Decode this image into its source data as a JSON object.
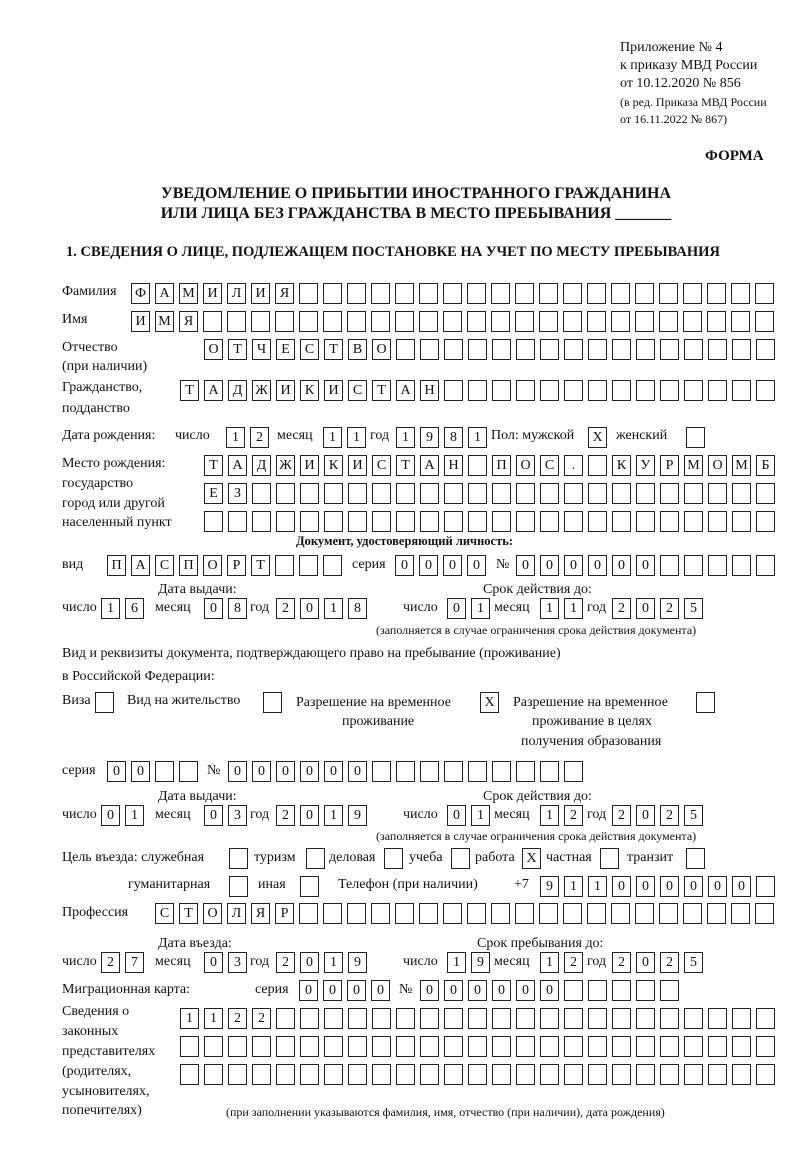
{
  "header": {
    "appendix": [
      "Приложение № 4",
      "к приказу МВД России",
      "от 10.12.2020 № 856"
    ],
    "revision": [
      "(в ред. Приказа МВД России",
      "от 16.11.2022 № 867)"
    ],
    "form_label": "ФОРМА",
    "title_line1": "УВЕДОМЛЕНИЕ О ПРИБЫТИИ ИНОСТРАННОГО ГРАЖДАНИНА",
    "title_line2": "ИЛИ ЛИЦА БЕЗ ГРАЖДАНСТВА В МЕСТО ПРЕБЫВАНИЯ _______",
    "section1": "1. СВЕДЕНИЯ О ЛИЦЕ, ПОДЛЕЖАЩЕМ ПОСТАНОВКЕ НА УЧЕТ ПО МЕСТУ ПРЕБЫВАНИЯ"
  },
  "labels": {
    "surname": "Фамилия",
    "name": "Имя",
    "patronymic": "Отчество",
    "patronymic_note": "(при наличии)",
    "citizenship": "Гражданство,",
    "citizenship2": "подданство",
    "birth_date": "Дата рождения:",
    "day": "число",
    "month": "месяц",
    "year": "год",
    "sex": "Пол: мужской",
    "female": "женский",
    "birth_place": [
      "Место рождения:",
      "государство",
      "город или другой",
      "населенный пункт"
    ],
    "id_doc": "Документ, удостоверяющий личность:",
    "kind": "вид",
    "series": "серия",
    "number": "№",
    "issue_date": "Дата выдачи:",
    "valid_until": "Срок действия до:",
    "validity_note": "(заполняется в случае ограничения срока действия документа)",
    "right_doc1": "Вид и реквизиты документа, подтверждающего право на пребывание (проживание)",
    "right_doc2": "в Российской Федерации:",
    "visa": "Виза",
    "residence": "Вид на жительство",
    "temp_res": [
      "Разрешение на временное",
      "проживание"
    ],
    "temp_res_edu": [
      "Разрешение на временное",
      "проживание в целях",
      "получения образования"
    ],
    "purpose": "Цель въезда: служебная",
    "tourism": "туризм",
    "business": "деловая",
    "study": "учеба",
    "work": "работа",
    "private": "частная",
    "transit": "транзит",
    "humanitarian": "гуманитарная",
    "other": "иная",
    "phone": "Телефон (при наличии)",
    "phone_prefix": "+7",
    "profession": "Профессия",
    "entry_date": "Дата въезда:",
    "stay_until": "Срок пребывания до:",
    "migration_card": "Миграционная карта:",
    "representatives": [
      "Сведения о",
      "законных",
      "представителях",
      "(родителях,",
      "усыновителях,",
      "попечителях)"
    ],
    "representatives_note": "(при заполнении указываются фамилия, имя, отчество (при наличии), дата рождения)"
  },
  "fields": {
    "surname": {
      "chars": "ФАМИЛИЯ",
      "count": 27
    },
    "name": {
      "chars": "ИМЯ",
      "count": 27
    },
    "patronymic": {
      "chars": "ОТЧЕСТВО",
      "count": 24
    },
    "citizenship": {
      "chars": "ТАДЖИКИСТАН",
      "count": 25
    },
    "birth_day": {
      "chars": "12",
      "count": 2
    },
    "birth_month": {
      "chars": "11",
      "count": 2
    },
    "birth_year": {
      "chars": "1981",
      "count": 4
    },
    "sex_male": {
      "chars": "X",
      "count": 1
    },
    "sex_female": {
      "chars": "",
      "count": 1
    },
    "birth_place_1": {
      "chars": "ТАДЖИКИСТАН ПОС. КУРМОМБ",
      "count": 24
    },
    "birth_place_2": {
      "chars": "ЕЗ",
      "count": 24
    },
    "birth_place_3": {
      "chars": "",
      "count": 24
    },
    "id_kind": {
      "chars": "ПАСПОРТ",
      "count": 10
    },
    "id_series": {
      "chars": "0000",
      "count": 4
    },
    "id_number": {
      "chars": "000000",
      "count": 11
    },
    "id_issue_day": {
      "chars": "16",
      "count": 2
    },
    "id_issue_month": {
      "chars": "08",
      "count": 2
    },
    "id_issue_year": {
      "chars": "2018",
      "count": 4
    },
    "id_valid_day": {
      "chars": "01",
      "count": 2
    },
    "id_valid_month": {
      "chars": "11",
      "count": 2
    },
    "id_valid_year": {
      "chars": "2025",
      "count": 4
    },
    "visa": {
      "chars": "",
      "count": 1
    },
    "residence": {
      "chars": "",
      "count": 1
    },
    "temp_res": {
      "chars": "X",
      "count": 1
    },
    "temp_res_edu": {
      "chars": "",
      "count": 1
    },
    "rd_series": {
      "chars": "00",
      "count": 4
    },
    "rd_number": {
      "chars": "000000",
      "count": 15
    },
    "rd_issue_day": {
      "chars": "01",
      "count": 2
    },
    "rd_issue_month": {
      "chars": "03",
      "count": 2
    },
    "rd_issue_year": {
      "chars": "2019",
      "count": 4
    },
    "rd_valid_day": {
      "chars": "01",
      "count": 2
    },
    "rd_valid_month": {
      "chars": "12",
      "count": 2
    },
    "rd_valid_year": {
      "chars": "2025",
      "count": 4
    },
    "p_service": {
      "chars": "",
      "count": 1
    },
    "p_tourism": {
      "chars": "",
      "count": 1
    },
    "p_business": {
      "chars": "",
      "count": 1
    },
    "p_study": {
      "chars": "",
      "count": 1
    },
    "p_work": {
      "chars": "X",
      "count": 1
    },
    "p_private": {
      "chars": "",
      "count": 1
    },
    "p_transit": {
      "chars": "",
      "count": 1
    },
    "p_humanitarian": {
      "chars": "",
      "count": 1
    },
    "p_other": {
      "chars": "",
      "count": 1
    },
    "phone": {
      "chars": "911000000",
      "count": 10
    },
    "profession": {
      "chars": "СТОЛЯР",
      "count": 26
    },
    "entry_day": {
      "chars": "27",
      "count": 2
    },
    "entry_month": {
      "chars": "03",
      "count": 2
    },
    "entry_year": {
      "chars": "2019",
      "count": 4
    },
    "stay_day": {
      "chars": "19",
      "count": 2
    },
    "stay_month": {
      "chars": "12",
      "count": 2
    },
    "stay_year": {
      "chars": "2025",
      "count": 4
    },
    "mc_series": {
      "chars": "0000",
      "count": 4
    },
    "mc_number": {
      "chars": "000000",
      "count": 11
    },
    "rep_1": {
      "chars": "1122",
      "count": 25
    },
    "rep_2": {
      "chars": "",
      "count": 25
    },
    "rep_3": {
      "chars": "",
      "count": 25
    }
  }
}
